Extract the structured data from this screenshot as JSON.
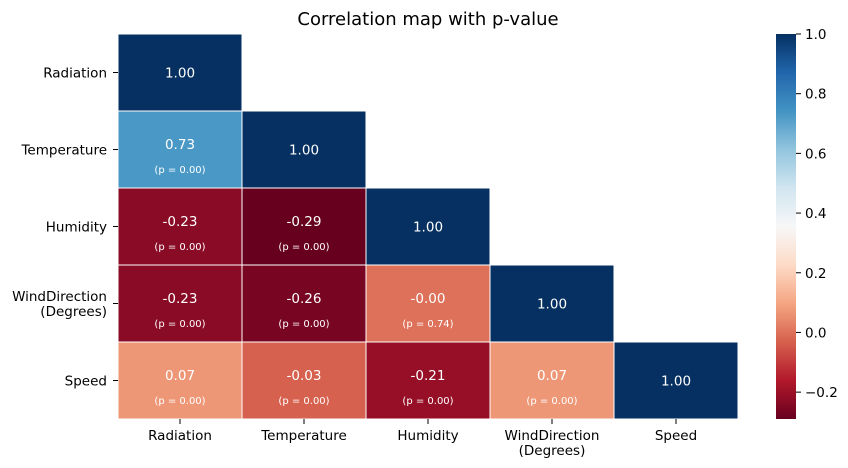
{
  "chart_data": {
    "type": "heatmap",
    "title": "Correlation map with p-value",
    "xlabel": "",
    "ylabel": "",
    "rows": [
      {
        "label": "Radiation",
        "label_lines": [
          "Radiation"
        ]
      },
      {
        "label": "Temperature",
        "label_lines": [
          "Temperature"
        ]
      },
      {
        "label": "Humidity",
        "label_lines": [
          "Humidity"
        ]
      },
      {
        "label": "WindDirection (Degrees)",
        "label_lines": [
          "WindDirection",
          "(Degrees)"
        ]
      },
      {
        "label": "Speed",
        "label_lines": [
          "Speed"
        ]
      }
    ],
    "columns": [
      {
        "label": "Radiation",
        "label_lines": [
          "Radiation"
        ]
      },
      {
        "label": "Temperature",
        "label_lines": [
          "Temperature"
        ]
      },
      {
        "label": "Humidity",
        "label_lines": [
          "Humidity"
        ]
      },
      {
        "label": "WindDirection (Degrees)",
        "label_lines": [
          "WindDirection",
          "(Degrees)"
        ]
      },
      {
        "label": "Speed",
        "label_lines": [
          "Speed"
        ]
      }
    ],
    "cells": [
      {
        "row": 0,
        "col": 0,
        "value": 1.0,
        "label": "1.00",
        "p_label": ""
      },
      {
        "row": 1,
        "col": 0,
        "value": 0.73,
        "label": "0.73",
        "p_label": "(p = 0.00)"
      },
      {
        "row": 1,
        "col": 1,
        "value": 1.0,
        "label": "1.00",
        "p_label": ""
      },
      {
        "row": 2,
        "col": 0,
        "value": -0.23,
        "label": "-0.23",
        "p_label": "(p = 0.00)"
      },
      {
        "row": 2,
        "col": 1,
        "value": -0.29,
        "label": "-0.29",
        "p_label": "(p = 0.00)"
      },
      {
        "row": 2,
        "col": 2,
        "value": 1.0,
        "label": "1.00",
        "p_label": ""
      },
      {
        "row": 3,
        "col": 0,
        "value": -0.23,
        "label": "-0.23",
        "p_label": "(p = 0.00)"
      },
      {
        "row": 3,
        "col": 1,
        "value": -0.26,
        "label": "-0.26",
        "p_label": "(p = 0.00)"
      },
      {
        "row": 3,
        "col": 2,
        "value": -0.0,
        "label": "-0.00",
        "p_label": "(p = 0.74)"
      },
      {
        "row": 3,
        "col": 3,
        "value": 1.0,
        "label": "1.00",
        "p_label": ""
      },
      {
        "row": 4,
        "col": 0,
        "value": 0.07,
        "label": "0.07",
        "p_label": "(p = 0.00)"
      },
      {
        "row": 4,
        "col": 1,
        "value": -0.03,
        "label": "-0.03",
        "p_label": "(p = 0.00)"
      },
      {
        "row": 4,
        "col": 2,
        "value": -0.21,
        "label": "-0.21",
        "p_label": "(p = 0.00)"
      },
      {
        "row": 4,
        "col": 3,
        "value": 0.07,
        "label": "0.07",
        "p_label": "(p = 0.00)"
      },
      {
        "row": 4,
        "col": 4,
        "value": 1.0,
        "label": "1.00",
        "p_label": ""
      }
    ],
    "colorbar": {
      "colormap": "RdBu",
      "range": [
        -0.29,
        1.0
      ],
      "ticks": [
        -0.2,
        0.0,
        0.2,
        0.4,
        0.6,
        0.8,
        1.0
      ],
      "tick_labels": [
        "−0.2",
        "0.0",
        "0.2",
        "0.4",
        "0.6",
        "0.8",
        "1.0"
      ]
    },
    "mask": "upper triangle (above diagonal) hidden",
    "cell_border_color": "#ffffff"
  }
}
